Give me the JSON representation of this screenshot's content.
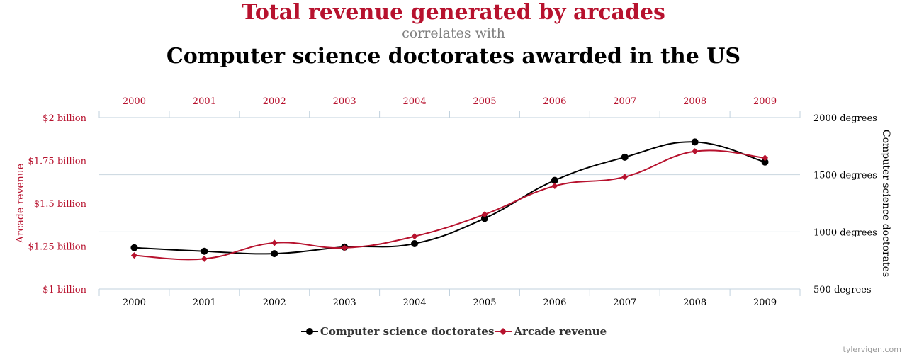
{
  "header": {
    "title_top": "Total revenue generated by arcades",
    "subtitle": "correlates with",
    "title_bottom": "Computer science doctorates awarded in the US"
  },
  "chart_data": {
    "type": "line",
    "categories": [
      "2000",
      "2001",
      "2002",
      "2003",
      "2004",
      "2005",
      "2006",
      "2007",
      "2008",
      "2009"
    ],
    "series": [
      {
        "name": "Computer science doctorates",
        "axis": "right",
        "color": "#000000",
        "marker": "circle",
        "values": [
          861,
          830,
          809,
          867,
          897,
          1118,
          1451,
          1654,
          1787,
          1611
        ]
      },
      {
        "name": "Arcade revenue",
        "axis": "left",
        "color": "#b7122e",
        "marker": "diamond",
        "values": [
          1.196,
          1.176,
          1.269,
          1.24,
          1.307,
          1.435,
          1.601,
          1.654,
          1.803,
          1.765
        ]
      }
    ],
    "left_axis": {
      "label": "Arcade revenue",
      "ticks": [
        "$1 billion",
        "$1.25 billion",
        "$1.5 billion",
        "$1.75 billion",
        "$2 billion"
      ],
      "tick_values": [
        1.0,
        1.25,
        1.5,
        1.75,
        2.0
      ],
      "range": [
        1.0,
        2.0
      ],
      "color": "#b7122e"
    },
    "right_axis": {
      "label": "Computer science doctorates",
      "ticks": [
        "500 degrees",
        "1000 degrees",
        "1500 degrees",
        "2000 degrees"
      ],
      "tick_values": [
        500,
        1000,
        1500,
        2000
      ],
      "range": [
        500,
        2000
      ],
      "color": "#000000"
    },
    "top_axis_color": "#b7122e",
    "grid": true,
    "legend_position": "bottom-center"
  },
  "footer": {
    "credit": "tylervigen.com"
  }
}
